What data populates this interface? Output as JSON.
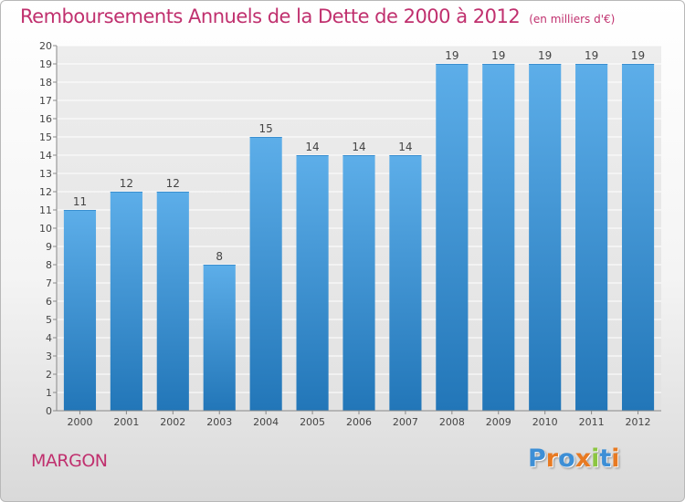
{
  "title": "Remboursements Annuels de la Dette de 2000 à 2012",
  "unit_label": "(en milliers d'€)",
  "place_name": "MARGON",
  "logo_text": "Proxiti",
  "colors": {
    "title": "#c0306e",
    "bar_top": "#5daee9",
    "bar_bottom": "#2276b8",
    "logo_letters": [
      "#3d8fd6",
      "#e87a22",
      "#3d8fd6",
      "#e87a22",
      "#8cc641",
      "#3d8fd6",
      "#e87a22"
    ]
  },
  "chart_data": {
    "type": "bar",
    "title": "Remboursements Annuels de la Dette de 2000 à 2012",
    "ylabel": "en milliers d'€",
    "xlabel": "",
    "categories": [
      "2000",
      "2001",
      "2002",
      "2003",
      "2004",
      "2005",
      "2006",
      "2007",
      "2008",
      "2009",
      "2010",
      "2011",
      "2012"
    ],
    "values": [
      11,
      12,
      12,
      8,
      15,
      14,
      14,
      14,
      19,
      19,
      19,
      19,
      19
    ],
    "ylim": [
      0,
      20
    ],
    "yticks": [
      0,
      1,
      2,
      3,
      4,
      5,
      6,
      7,
      8,
      9,
      10,
      11,
      12,
      13,
      14,
      15,
      16,
      17,
      18,
      19,
      20
    ],
    "grid": true,
    "data_labels": true
  }
}
